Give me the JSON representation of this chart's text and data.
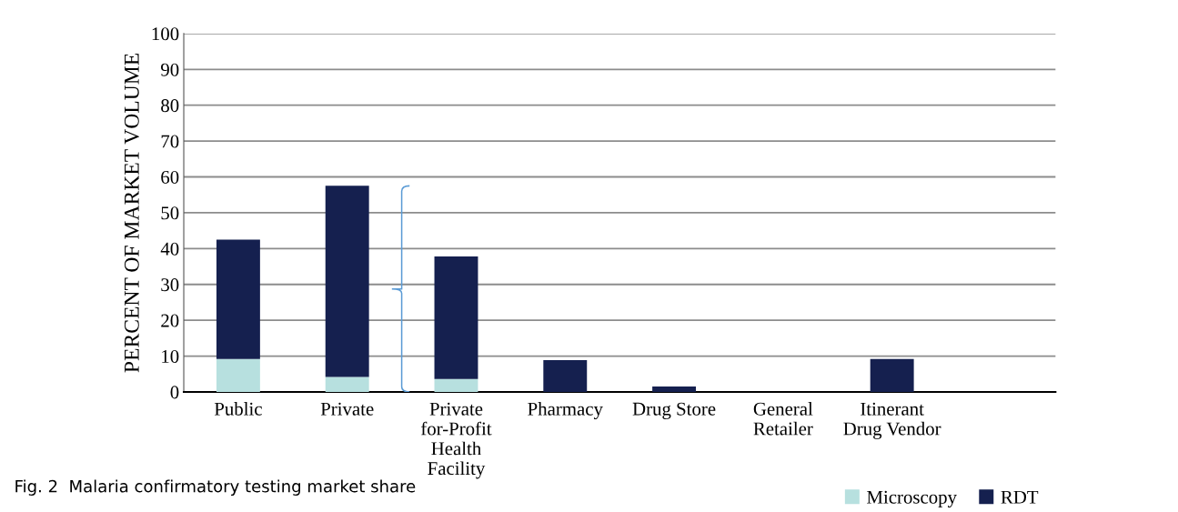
{
  "chart_data": {
    "type": "bar",
    "stacked": true,
    "categories": [
      "Public",
      "Private",
      "Private for-Profit Health Facility",
      "Pharmacy",
      "Drug Store",
      "General Retailer",
      "Itinerant Drug Vendor",
      null
    ],
    "series": [
      {
        "name": "Microscopy",
        "color": "#b7e0df",
        "values": [
          9.2,
          4.2,
          3.6,
          0,
          0,
          0,
          0,
          0
        ]
      },
      {
        "name": "RDT",
        "color": "#15204f",
        "values": [
          33.3,
          53.3,
          34.2,
          8.9,
          1.5,
          0,
          9.2,
          0
        ]
      }
    ],
    "ylabel": "PERCENT OF MARKET VOLUME",
    "ylim": [
      0,
      100
    ],
    "yticks": [
      0,
      10,
      20,
      30,
      40,
      50,
      60,
      70,
      80,
      90,
      100
    ],
    "grid": "y",
    "legend": "bottom right",
    "annotations": [
      "Fig. 2  Malaria confirmatory testing market share"
    ]
  }
}
